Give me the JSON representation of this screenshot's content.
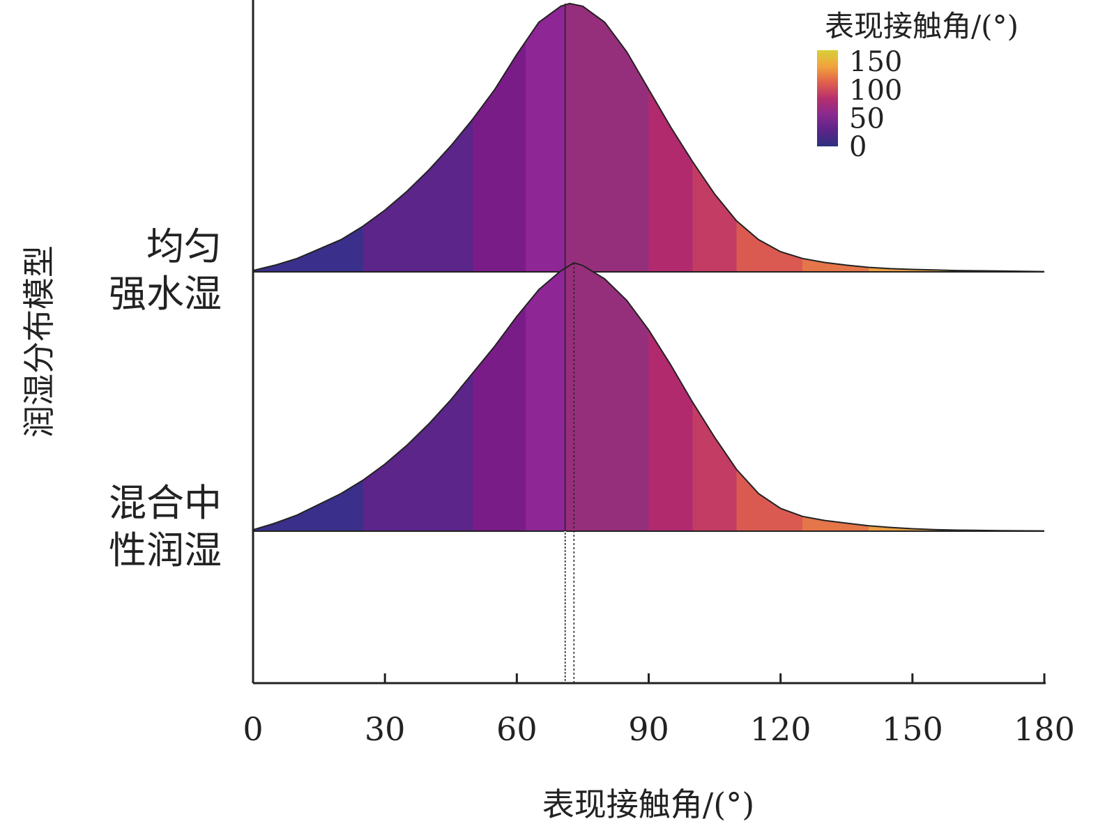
{
  "chart_data": {
    "type": "ridgeline",
    "xlabel": "表现接触角/(°)",
    "ylabel": "润湿分布模型",
    "xlim": [
      0,
      180
    ],
    "x_ticks": [
      0,
      30,
      60,
      90,
      120,
      150,
      180
    ],
    "series": [
      {
        "name": "均匀强水湿",
        "label_lines": [
          "均匀",
          "强水湿"
        ],
        "peak_x": 72,
        "mean_line_x": 71,
        "points": [
          [
            0,
            0.005
          ],
          [
            5,
            0.025
          ],
          [
            10,
            0.05
          ],
          [
            15,
            0.085
          ],
          [
            20,
            0.12
          ],
          [
            25,
            0.17
          ],
          [
            30,
            0.23
          ],
          [
            35,
            0.3
          ],
          [
            40,
            0.38
          ],
          [
            45,
            0.47
          ],
          [
            50,
            0.57
          ],
          [
            55,
            0.68
          ],
          [
            60,
            0.81
          ],
          [
            65,
            0.93
          ],
          [
            70,
            0.99
          ],
          [
            72,
            1.0
          ],
          [
            75,
            0.99
          ],
          [
            80,
            0.93
          ],
          [
            85,
            0.82
          ],
          [
            90,
            0.68
          ],
          [
            95,
            0.54
          ],
          [
            100,
            0.41
          ],
          [
            105,
            0.29
          ],
          [
            110,
            0.19
          ],
          [
            115,
            0.12
          ],
          [
            120,
            0.075
          ],
          [
            125,
            0.05
          ],
          [
            130,
            0.035
          ],
          [
            135,
            0.025
          ],
          [
            140,
            0.017
          ],
          [
            145,
            0.012
          ],
          [
            150,
            0.009
          ],
          [
            155,
            0.007
          ],
          [
            160,
            0.005
          ],
          [
            170,
            0.003
          ],
          [
            180,
            0.001
          ]
        ]
      },
      {
        "name": "混合中性润湿",
        "label_lines": [
          "混合中",
          "性润湿"
        ],
        "peak_x": 73,
        "mean_line_x": 73,
        "points": [
          [
            0,
            0.005
          ],
          [
            5,
            0.03
          ],
          [
            10,
            0.06
          ],
          [
            15,
            0.1
          ],
          [
            20,
            0.14
          ],
          [
            25,
            0.19
          ],
          [
            30,
            0.25
          ],
          [
            35,
            0.32
          ],
          [
            40,
            0.4
          ],
          [
            45,
            0.49
          ],
          [
            50,
            0.59
          ],
          [
            55,
            0.69
          ],
          [
            60,
            0.8
          ],
          [
            65,
            0.9
          ],
          [
            70,
            0.97
          ],
          [
            73,
            1.0
          ],
          [
            75,
            0.99
          ],
          [
            80,
            0.94
          ],
          [
            85,
            0.86
          ],
          [
            90,
            0.75
          ],
          [
            95,
            0.62
          ],
          [
            100,
            0.48
          ],
          [
            105,
            0.35
          ],
          [
            110,
            0.23
          ],
          [
            115,
            0.14
          ],
          [
            120,
            0.085
          ],
          [
            125,
            0.055
          ],
          [
            130,
            0.04
          ],
          [
            135,
            0.03
          ],
          [
            140,
            0.02
          ],
          [
            145,
            0.014
          ],
          [
            150,
            0.009
          ],
          [
            155,
            0.006
          ],
          [
            160,
            0.004
          ],
          [
            170,
            0.002
          ],
          [
            180,
            0.001
          ]
        ]
      }
    ],
    "fill_bands": [
      {
        "from": 0,
        "to": 25,
        "color": "#3a2f8a"
      },
      {
        "from": 25,
        "to": 50,
        "color": "#5b2589"
      },
      {
        "from": 50,
        "to": 62,
        "color": "#7a1c88"
      },
      {
        "from": 62,
        "to": 71,
        "color": "#8e2695"
      },
      {
        "from": 71,
        "to": 90,
        "color": "#962f7b"
      },
      {
        "from": 90,
        "to": 100,
        "color": "#b12a6e"
      },
      {
        "from": 100,
        "to": 110,
        "color": "#c23c63"
      },
      {
        "from": 110,
        "to": 125,
        "color": "#da5a52"
      },
      {
        "from": 125,
        "to": 140,
        "color": "#e4764a"
      },
      {
        "from": 140,
        "to": 155,
        "color": "#ec9f43"
      },
      {
        "from": 155,
        "to": 180,
        "color": "#f0c84a"
      }
    ],
    "legend": {
      "title": "表现接触角/(°)",
      "ticks": [
        150,
        100,
        50,
        0
      ],
      "range": [
        0,
        170
      ],
      "colors": [
        "#2c2f7f",
        "#5c2489",
        "#8a2a8f",
        "#b7306c",
        "#e0614b",
        "#f2a33c",
        "#d8d038"
      ],
      "position": "top-right"
    },
    "colors": {
      "outline": "#222222",
      "axis": "#222222"
    }
  }
}
